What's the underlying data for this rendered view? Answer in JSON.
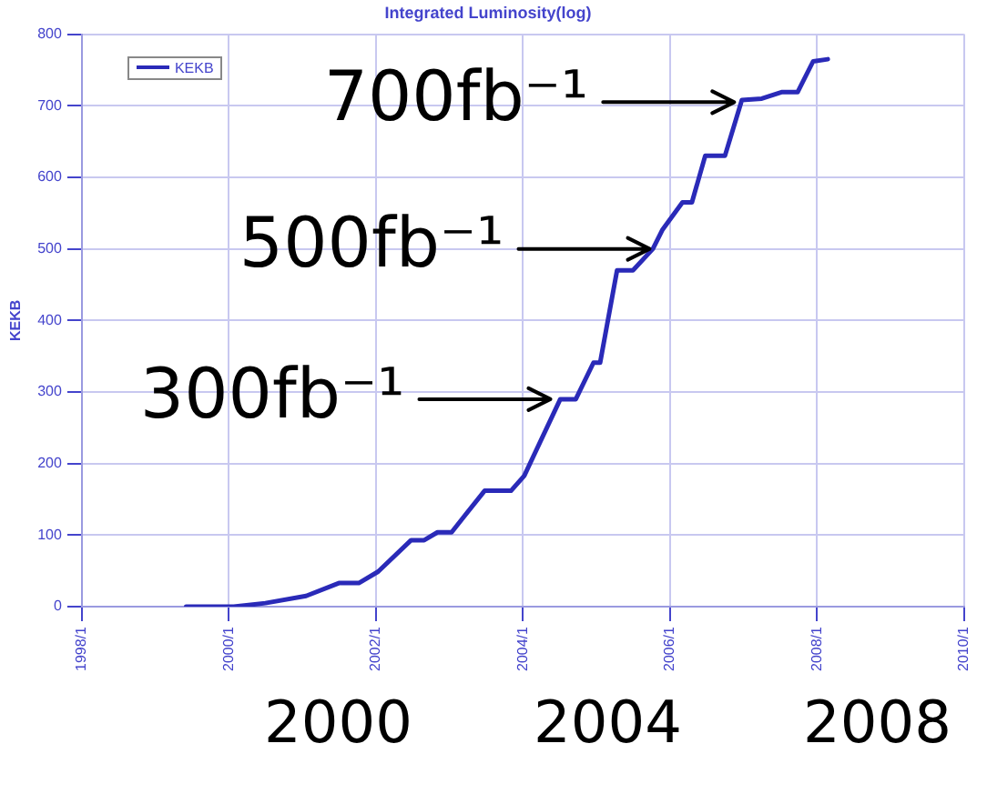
{
  "chart_data": {
    "type": "line",
    "title": "Integrated Luminosity(log)",
    "ylabel": "KEKB",
    "series": [
      {
        "name": "KEKB",
        "color": "#2a2ab8",
        "x": [
          "1999-06-03",
          "2000-01-26",
          "2000-07-01",
          "2001-01-19",
          "2001-07-01",
          "2001-10-08",
          "2002-01-12",
          "2002-06-25",
          "2002-08-29",
          "2002-11-03",
          "2003-01-12",
          "2003-06-25",
          "2003-11-03",
          "2004-01-08",
          "2004-07-05",
          "2004-09-20",
          "2004-12-17",
          "2005-01-19",
          "2005-04-13",
          "2005-07-01",
          "2005-10-08",
          "2005-11-25",
          "2006-03-04",
          "2006-04-20",
          "2006-06-25",
          "2006-10-01",
          "2006-12-24",
          "2007-04-02",
          "2007-07-09",
          "2007-09-27",
          "2007-12-13",
          "2008-02-24"
        ],
        "values": [
          0,
          0,
          5,
          15,
          33,
          33,
          49,
          93,
          93,
          104,
          104,
          162,
          162,
          183,
          290,
          290,
          341,
          341,
          470,
          470,
          500,
          527,
          565,
          565,
          630,
          630,
          708,
          710,
          719,
          719,
          762,
          765
        ]
      }
    ],
    "xlim": [
      "1998-01-01",
      "2010-01-01"
    ],
    "xticks": [
      {
        "value": "1998-01",
        "label": "1998/1"
      },
      {
        "value": "2000-01",
        "label": "2000/1"
      },
      {
        "value": "2002-01",
        "label": "2002/1"
      },
      {
        "value": "2004-01",
        "label": "2004/1"
      },
      {
        "value": "2006-01",
        "label": "2006/1"
      },
      {
        "value": "2008-01",
        "label": "2008/1"
      },
      {
        "value": "2010-01",
        "label": "2010/1"
      }
    ],
    "ylim": [
      0,
      800
    ],
    "yticks": [
      0,
      100,
      200,
      300,
      400,
      500,
      600,
      700,
      800
    ],
    "grid": true,
    "legend": "top left",
    "marker": "none",
    "line_style": "solid",
    "annotations": [
      {
        "text": "700fb⁻¹",
        "x": "2006-12-13",
        "y": 705
      },
      {
        "text": "500fb⁻¹",
        "x": "2005-10-19",
        "y": 500
      },
      {
        "text": "300fb⁻¹",
        "x": "2004-06-13",
        "y": 290
      },
      "2000",
      "2004",
      "2008"
    ]
  }
}
